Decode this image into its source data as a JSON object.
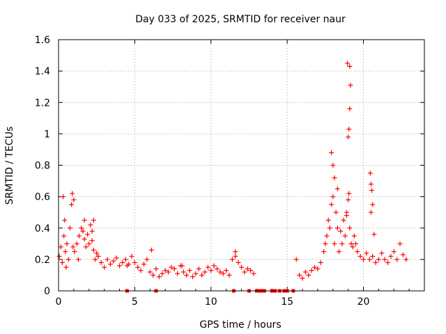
{
  "chart_data": {
    "type": "scatter",
    "title": "Day 033 of 2025, SRMTID for receiver naur",
    "xlabel": "GPS time / hours",
    "ylabel": "SRMTID / TECUs",
    "xlim": [
      0,
      24
    ],
    "ylim": [
      0,
      1.6
    ],
    "xticks": [
      0,
      5,
      10,
      15,
      20
    ],
    "xtick_labels": [
      "0",
      "5",
      "10",
      "15",
      "20"
    ],
    "yticks": [
      0,
      0.2,
      0.4,
      0.6,
      0.8,
      1.0,
      1.2,
      1.4,
      1.6
    ],
    "ytick_labels": [
      "0",
      "0.2",
      "0.4",
      "0.6",
      "0.8",
      "1",
      "1.2",
      "1.4",
      "1.6"
    ],
    "grid": true,
    "marker": "plus",
    "color": "#ff0000",
    "series": [
      {
        "name": "SRMTID",
        "x": [
          0.05,
          0.15,
          0.25,
          0.35,
          0.45,
          0.55,
          0.65,
          0.75,
          0.85,
          0.95,
          1.05,
          1.2,
          1.35,
          1.5,
          1.6,
          1.7,
          1.8,
          1.9,
          2.0,
          2.1,
          2.2,
          2.3,
          2.4,
          2.5,
          2.6,
          2.8,
          3.0,
          3.2,
          3.4,
          3.6,
          3.8,
          4.0,
          4.2,
          4.4,
          4.6,
          4.8,
          5.0,
          5.2,
          5.4,
          5.6,
          5.8,
          6.0,
          6.2,
          6.4,
          6.6,
          6.8,
          7.0,
          7.2,
          7.4,
          7.6,
          7.8,
          8.0,
          8.2,
          8.4,
          8.6,
          8.8,
          9.0,
          9.2,
          9.4,
          9.6,
          9.8,
          10.0,
          10.2,
          10.4,
          10.6,
          10.8,
          11.0,
          11.2,
          11.4,
          11.6,
          11.8,
          12.0,
          12.2,
          12.4,
          12.6,
          12.8,
          15.6,
          15.8,
          16.0,
          16.2,
          16.4,
          16.6,
          16.8,
          17.0,
          17.2,
          17.4,
          17.5,
          17.6,
          17.7,
          17.8,
          17.9,
          18.0,
          18.1,
          18.2,
          18.3,
          18.4,
          18.5,
          18.6,
          18.7,
          18.8,
          18.9,
          19.0,
          19.1,
          19.2,
          19.3,
          19.4,
          19.5,
          19.6,
          19.8,
          20.0,
          20.2,
          20.4,
          20.6,
          20.8,
          21.0,
          21.2,
          21.4,
          21.6,
          21.8,
          22.0,
          22.2,
          22.4,
          22.6,
          22.8,
          0.3,
          0.4,
          0.9,
          1.0,
          1.7,
          2.2,
          2.3,
          0.5,
          1.3,
          4.5,
          6.1,
          8.1,
          11.6,
          17.9,
          18.0,
          18.1,
          18.3,
          18.9,
          19.0,
          19.05,
          19.1,
          19.15,
          19.1,
          18.95,
          19.05,
          20.45,
          20.5,
          20.55,
          20.6,
          20.5,
          20.7
        ],
        "y": [
          0.22,
          0.28,
          0.18,
          0.35,
          0.25,
          0.3,
          0.2,
          0.4,
          0.55,
          0.28,
          0.25,
          0.3,
          0.35,
          0.4,
          0.38,
          0.33,
          0.28,
          0.36,
          0.3,
          0.42,
          0.32,
          0.26,
          0.2,
          0.24,
          0.22,
          0.18,
          0.15,
          0.2,
          0.17,
          0.19,
          0.21,
          0.16,
          0.18,
          0.2,
          0.17,
          0.22,
          0.18,
          0.15,
          0.13,
          0.17,
          0.2,
          0.12,
          0.1,
          0.14,
          0.09,
          0.11,
          0.13,
          0.12,
          0.15,
          0.14,
          0.11,
          0.16,
          0.12,
          0.1,
          0.13,
          0.09,
          0.11,
          0.14,
          0.1,
          0.12,
          0.15,
          0.13,
          0.16,
          0.14,
          0.12,
          0.11,
          0.13,
          0.1,
          0.2,
          0.22,
          0.18,
          0.15,
          0.12,
          0.14,
          0.13,
          0.11,
          0.2,
          0.1,
          0.08,
          0.12,
          0.1,
          0.13,
          0.15,
          0.14,
          0.18,
          0.25,
          0.3,
          0.35,
          0.45,
          0.4,
          0.55,
          0.6,
          0.3,
          0.5,
          0.4,
          0.25,
          0.38,
          0.3,
          0.45,
          0.35,
          0.5,
          0.58,
          0.4,
          0.3,
          0.28,
          0.35,
          0.3,
          0.25,
          0.22,
          0.2,
          0.24,
          0.2,
          0.22,
          0.18,
          0.2,
          0.24,
          0.2,
          0.18,
          0.22,
          0.25,
          0.2,
          0.3,
          0.23,
          0.2,
          0.6,
          0.45,
          0.62,
          0.58,
          0.45,
          0.38,
          0.45,
          0.15,
          0.2,
          0.16,
          0.26,
          0.16,
          0.25,
          0.88,
          0.8,
          0.72,
          0.65,
          0.48,
          0.98,
          1.03,
          1.16,
          1.31,
          1.43,
          1.45,
          0.62,
          0.75,
          0.68,
          0.64,
          0.55,
          0.5,
          0.36
        ],
        "gap_x": [
          4.5,
          6.4,
          11.5,
          12.5,
          13.0,
          13.1,
          13.2,
          13.3,
          13.5,
          14.0,
          14.2,
          14.5,
          14.8,
          14.9,
          15.0,
          15.4
        ]
      }
    ]
  }
}
